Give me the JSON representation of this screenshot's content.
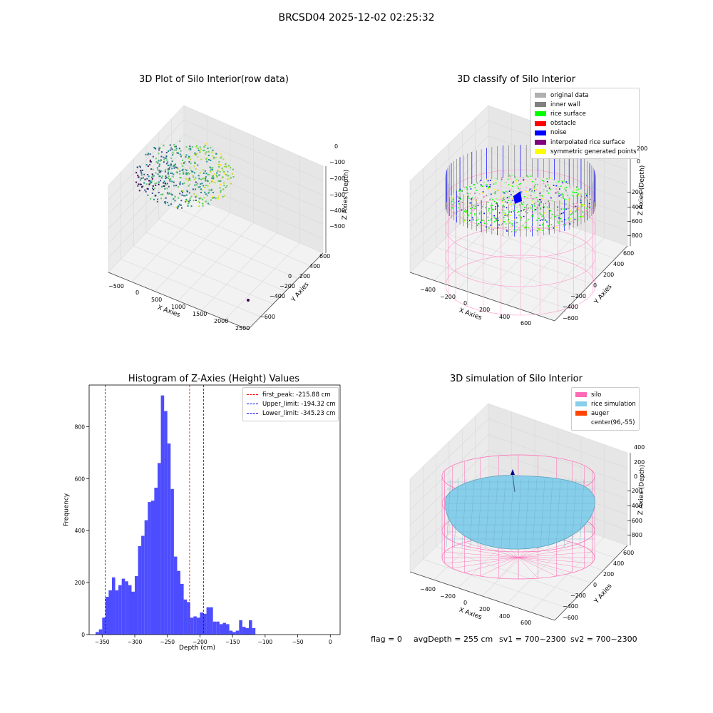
{
  "suptitle": "BRCSD04 2025-12-02 02:25:32",
  "chart_data": [
    {
      "type": "scatter",
      "title": "3D Plot of Silo Interior(row data)",
      "xlabel": "X Axies",
      "ylabel": "Y Axies",
      "zlabel": "Z Axies (Depth)",
      "x_ticks": [
        "−500",
        "0",
        "500",
        "1000",
        "1500",
        "2000",
        "2500"
      ],
      "y_ticks": [
        "−600",
        "−400",
        "−200",
        "0",
        "200",
        "400",
        "600"
      ],
      "z_ticks": [
        "0",
        "−100",
        "−200",
        "−300",
        "−400",
        "−500"
      ],
      "colormap": "viridis"
    },
    {
      "type": "scatter",
      "title": "3D classify of Silo Interior",
      "xlabel": "X Axies",
      "ylabel": "Y Axies",
      "zlabel": "Z Axies (Depth)",
      "x_ticks": [
        "−400",
        "−200",
        "0",
        "200",
        "400",
        "600"
      ],
      "y_ticks": [
        "−600",
        "−400",
        "−200",
        "0",
        "200",
        "400",
        "600"
      ],
      "z_ticks": [
        "200",
        "0",
        "−200",
        "−400",
        "−600",
        "−800"
      ],
      "legend_position": "top-right",
      "legend": [
        {
          "name": "original data",
          "color": "#b0b0b0"
        },
        {
          "name": "inner wall",
          "color": "#808080"
        },
        {
          "name": "rice surface",
          "color": "#00ff00"
        },
        {
          "name": "obstacle",
          "color": "#ff0000"
        },
        {
          "name": "noise",
          "color": "#0000ff"
        },
        {
          "name": "interpolated rice surface",
          "color": "#800080"
        },
        {
          "name": "symmetric generated points",
          "color": "#ffff00"
        }
      ],
      "silo_color": "#ff99cc"
    },
    {
      "type": "bar",
      "title": "Histogram of Z-Axies (Height) Values",
      "xlabel": "Depth (cm)",
      "ylabel": "Frequency",
      "bin_width": 5,
      "bins_start": [
        -360,
        -355,
        -350,
        -345,
        -340,
        -335,
        -330,
        -325,
        -320,
        -315,
        -310,
        -305,
        -300,
        -295,
        -290,
        -285,
        -280,
        -275,
        -270,
        -265,
        -260,
        -255,
        -250,
        -245,
        -240,
        -235,
        -230,
        -225,
        -220,
        -215,
        -210,
        -205,
        -200,
        -195,
        -190,
        -185,
        -180,
        -175,
        -170,
        -165,
        -160,
        -155,
        -150,
        -145,
        -140,
        -135,
        -130,
        -125,
        -120,
        -115,
        -110,
        -105,
        -100,
        -95,
        -90,
        -85,
        -80,
        -75,
        -70,
        -65,
        -60,
        -55,
        -50,
        -45,
        -40,
        -35,
        -30,
        -25
      ],
      "values": [
        10,
        20,
        65,
        145,
        170,
        220,
        170,
        190,
        215,
        205,
        190,
        165,
        225,
        340,
        380,
        440,
        510,
        515,
        565,
        660,
        920,
        860,
        735,
        560,
        300,
        245,
        195,
        135,
        125,
        65,
        70,
        65,
        85,
        80,
        105,
        105,
        50,
        50,
        40,
        45,
        40,
        15,
        10,
        15,
        55,
        30,
        25,
        55,
        25,
        0,
        0,
        0,
        0,
        0,
        0,
        0,
        0,
        0,
        0,
        0,
        0,
        0,
        0,
        0,
        0,
        0,
        0,
        0
      ],
      "bar_color": "#4d4dff",
      "xlim": [
        -370,
        15
      ],
      "ylim": [
        0,
        960
      ],
      "x_ticks": [
        -350,
        -300,
        -250,
        -200,
        -150,
        -100,
        -50,
        0
      ],
      "y_ticks": [
        0,
        200,
        400,
        600,
        800
      ],
      "lines": [
        {
          "name": "first_peak: -215.88 cm",
          "x": -215.88,
          "color": "#ff0000"
        },
        {
          "name": "Upper_limit: -194.32 cm",
          "x": -194.32,
          "color": "#0000ff"
        },
        {
          "name": "Lower_limit: -345.23 cm",
          "x": -345.23,
          "color": "#0000ff"
        }
      ],
      "legend_position": "top-right"
    },
    {
      "type": "surface",
      "title": "3D simulation of Silo Interior",
      "xlabel": "X Axies",
      "ylabel": "Y Axies",
      "zlabel": "Z Axies (Depth)",
      "x_ticks": [
        "−400",
        "−200",
        "0",
        "200",
        "400",
        "600"
      ],
      "y_ticks": [
        "−600",
        "−400",
        "−200",
        "0",
        "200",
        "400",
        "600"
      ],
      "z_ticks": [
        "400",
        "200",
        "0",
        "−200",
        "−400",
        "−600",
        "−800"
      ],
      "legend_position": "top-right",
      "legend": [
        {
          "name": "silo",
          "color": "#ff69b4"
        },
        {
          "name": "rice simulation",
          "color": "#87ceeb"
        },
        {
          "name": "auger",
          "color": "#ff4500"
        },
        {
          "name": "center(96,-55)",
          "color": "#ffffff"
        }
      ]
    }
  ],
  "footer": {
    "flag": "flag = 0",
    "avg_depth": "avgDepth = 255 cm",
    "sv1": "sv1 = 700~2300",
    "sv2": "sv2 = 700~2300"
  }
}
